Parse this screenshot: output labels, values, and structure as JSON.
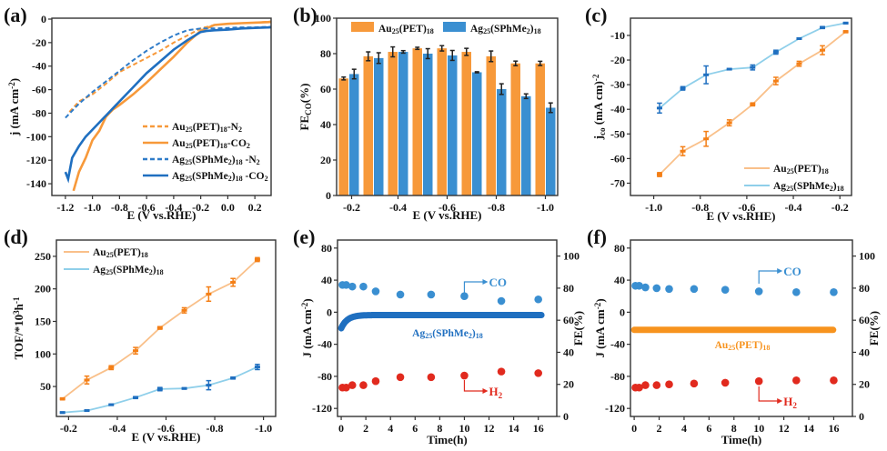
{
  "chart_data": [
    {
      "panel": "(a)",
      "type": "line",
      "xlabel": "E (V vs.RHE)",
      "ylabel": "j (mA cm^-2)",
      "xlim": [
        -1.3,
        0.32
      ],
      "ylim": [
        -150,
        0
      ],
      "xticks": [
        -1.2,
        -1.0,
        -0.8,
        -0.6,
        -0.4,
        -0.2,
        0.0,
        0.2
      ],
      "xtick_labels": [
        "-1.2",
        "-1.0",
        "-0.8",
        "-0.6",
        "-0.4",
        "-0.2",
        "0.0",
        "0.2"
      ],
      "yticks": [
        0,
        -20,
        -40,
        -60,
        -80,
        -100,
        -120,
        -140
      ],
      "ytick_labels": [
        "0",
        "-20",
        "-40",
        "-60",
        "-80",
        "-100",
        "-120",
        "-140"
      ],
      "legend_position": "bottom-right",
      "series": [
        {
          "name": "Au25(PET)18-N2",
          "label_main": "Au",
          "sub1": "25",
          "mid": "(PET)",
          "sub2": "18",
          "suffix": "-N",
          "sub3": "2",
          "color": "#F7993A",
          "dash": true,
          "x": [
            -1.17,
            -1.1,
            -1.0,
            -0.9,
            -0.8,
            -0.7,
            -0.6,
            -0.5,
            -0.4,
            -0.3,
            -0.2,
            -0.1,
            0.0,
            0.1,
            0.2,
            0.32
          ],
          "y": [
            -79,
            -70,
            -64,
            -55,
            -45,
            -39,
            -33,
            -27,
            -20,
            -14,
            -8,
            -5,
            -4,
            -3.5,
            -3,
            -2
          ]
        },
        {
          "name": "Au25(PET)18-CO2",
          "label_main": "Au",
          "sub1": "25",
          "mid": "(PET)",
          "sub2": "18",
          "suffix": "-CO",
          "sub3": "2",
          "color": "#F7993A",
          "dash": false,
          "x": [
            -1.14,
            -1.1,
            -1.05,
            -1.0,
            -0.95,
            -0.9,
            -0.85,
            -0.8,
            -0.7,
            -0.6,
            -0.5,
            -0.4,
            -0.3,
            -0.2,
            -0.1,
            0.0,
            0.1,
            0.2,
            0.32
          ],
          "y": [
            -146,
            -130,
            -118,
            -103,
            -95,
            -83,
            -77,
            -73,
            -64,
            -54,
            -43,
            -32,
            -20,
            -10,
            -5,
            -4,
            -3.5,
            -3,
            -2.5
          ]
        },
        {
          "name": "Ag25(SPhMe2)18-N2",
          "label_main": "Ag",
          "sub1": "25",
          "mid": "(SPhMe",
          "midsub": "2",
          "mid2": ")",
          "sub2": "18",
          "suffix": " -N",
          "sub3": "2",
          "color": "#2F7CC9",
          "dash": true,
          "x": [
            -1.2,
            -1.1,
            -1.0,
            -0.9,
            -0.8,
            -0.7,
            -0.6,
            -0.5,
            -0.4,
            -0.3,
            -0.2,
            -0.1,
            0.0,
            0.1,
            0.2,
            0.32
          ],
          "y": [
            -84,
            -72,
            -62,
            -53,
            -44,
            -35,
            -27,
            -20,
            -14,
            -9.5,
            -8,
            -8,
            -7.5,
            -7,
            -7,
            -6.5
          ]
        },
        {
          "name": "Ag25(SPhMe2)18-CO2",
          "label_main": "Ag",
          "sub1": "25",
          "mid": "(SPhMe",
          "midsub": "2",
          "mid2": ")",
          "sub2": "18",
          "suffix": " -CO",
          "sub3": "2",
          "color": "#1F6FC0",
          "dash": false,
          "x": [
            -1.2,
            -1.18,
            -1.15,
            -1.1,
            -1.05,
            -1.0,
            -0.9,
            -0.8,
            -0.7,
            -0.6,
            -0.5,
            -0.4,
            -0.3,
            -0.2,
            -0.15,
            -0.1,
            0.0,
            0.1,
            0.2,
            0.32
          ],
          "y": [
            -130,
            -136,
            -118,
            -108,
            -100,
            -94,
            -82,
            -70,
            -58,
            -46,
            -36,
            -26,
            -18,
            -11,
            -10,
            -9.5,
            -9,
            -8,
            -7.5,
            -7
          ]
        }
      ]
    },
    {
      "panel": "(b)",
      "type": "bar",
      "xlabel": "E (V vs.RHE)",
      "ylabel": "FE_CO(%)",
      "ylabel_main": "FE",
      "ylabel_sub": "CO",
      "ylabel_tail": "(%)",
      "ylim": [
        0,
        100
      ],
      "yticks": [
        0,
        20,
        40,
        60,
        80,
        100
      ],
      "ytick_labels": [
        "0",
        "20",
        "40",
        "60",
        "80",
        "100"
      ],
      "categories": [
        -0.2,
        -0.3,
        -0.4,
        -0.5,
        -0.6,
        -0.7,
        -0.8,
        -0.9,
        -1.0
      ],
      "xtick_labels": [
        "-0.2",
        "-0.4",
        "-0.6",
        "-0.8",
        "-1.0"
      ],
      "xtick_categories": [
        0,
        2,
        4,
        6,
        8
      ],
      "legend_position": "top",
      "series": [
        {
          "name": "Au25(PET)18",
          "color": "#F7993A",
          "values": [
            66,
            78.5,
            81,
            83,
            83,
            81,
            78.5,
            74.5,
            74.5
          ],
          "errors": [
            0.8,
            2.5,
            2.8,
            0.6,
            1.5,
            2.0,
            3.0,
            1.3,
            1.2
          ]
        },
        {
          "name": "Ag25(SPhMe2)18",
          "color": "#3A8FD1",
          "values": [
            68.5,
            77.5,
            81,
            80,
            79,
            69.5,
            60,
            56,
            49.5
          ],
          "errors": [
            2.7,
            3.0,
            0.7,
            2.8,
            2.8,
            0.3,
            3.0,
            1.3,
            2.7
          ]
        }
      ]
    },
    {
      "panel": "(c)",
      "type": "line",
      "xlabel": "E (V vs.RHE)",
      "ylabel": "jco (mA cm)^-2",
      "xlim": [
        -1.1,
        -0.15
      ],
      "ylim": [
        -75,
        -3
      ],
      "xticks": [
        -1.0,
        -0.8,
        -0.6,
        -0.4,
        -0.2
      ],
      "xtick_labels": [
        "-1.0",
        "-0.8",
        "-0.6",
        "-0.4",
        "-0.2"
      ],
      "yticks": [
        -10,
        -20,
        -30,
        -40,
        -50,
        -60,
        -70
      ],
      "ytick_labels": [
        "-10",
        "-20",
        "-30",
        "-40",
        "-50",
        "-60",
        "-70"
      ],
      "legend_position": "bottom-right",
      "series": [
        {
          "name": "Au25(PET)18",
          "line_color": "#F9C08A",
          "marker_color": "#F47F16",
          "x": [
            -0.975,
            -0.875,
            -0.775,
            -0.675,
            -0.575,
            -0.475,
            -0.375,
            -0.275,
            -0.175
          ],
          "y": [
            -66.5,
            -57,
            -52,
            -45.5,
            -38,
            -28.5,
            -21.5,
            -16,
            -8.5
          ],
          "errors": [
            0.8,
            1.8,
            3.0,
            1.2,
            0.6,
            1.5,
            1.0,
            1.8,
            0.4
          ]
        },
        {
          "name": "Ag25(SPhMe2)18",
          "line_color": "#8FCFEA",
          "marker_color": "#1F6FC0",
          "x": [
            -0.975,
            -0.875,
            -0.775,
            -0.675,
            -0.575,
            -0.475,
            -0.375,
            -0.275,
            -0.175
          ],
          "y": [
            -39.5,
            -31.5,
            -26,
            -23.7,
            -23,
            -16.8,
            -11.3,
            -6.8,
            -5
          ],
          "errors": [
            2.0,
            0.7,
            3.6,
            0.2,
            1.0,
            0.8,
            0.2,
            0.4,
            0.3
          ]
        }
      ]
    },
    {
      "panel": "(d)",
      "type": "line",
      "xlabel": "E (V vs.RHE)",
      "ylabel": "TOF/*10^3h^-1",
      "xlim": [
        -0.15,
        -1.05
      ],
      "ylim": [
        4,
        275
      ],
      "xticks": [
        -0.2,
        -0.4,
        -0.6,
        -0.8,
        -1.0
      ],
      "xtick_labels": [
        "-0.2",
        "-0.4",
        "-0.6",
        "-0.8",
        "-1.0"
      ],
      "yticks": [
        50,
        100,
        150,
        200,
        250
      ],
      "ytick_labels": [
        "50",
        "100",
        "150",
        "200",
        "250"
      ],
      "legend_position": "top-left",
      "series": [
        {
          "name": "Au25(PET)18",
          "line_color": "#F9C08A",
          "marker_color": "#F47F16",
          "x": [
            -0.175,
            -0.275,
            -0.375,
            -0.475,
            -0.575,
            -0.675,
            -0.775,
            -0.875,
            -0.975
          ],
          "y": [
            31,
            60,
            79,
            105,
            140,
            167,
            192,
            210,
            245
          ],
          "errors": [
            1.5,
            6,
            3,
            5,
            2,
            4,
            11,
            6,
            3
          ]
        },
        {
          "name": "Ag25(SPhMe2)18",
          "line_color": "#8FCFEA",
          "marker_color": "#1F6FC0",
          "x": [
            -0.175,
            -0.275,
            -0.375,
            -0.475,
            -0.575,
            -0.675,
            -0.775,
            -0.875,
            -0.975
          ],
          "y": [
            10,
            13,
            22,
            33,
            46,
            47,
            52,
            63,
            80
          ],
          "errors": [
            1,
            1,
            1,
            1.5,
            2.5,
            1,
            7,
            1.5,
            4
          ]
        }
      ]
    },
    {
      "panel": "(e)",
      "type": "scatter",
      "xlabel": "Time(h)",
      "ylabel": "J (mA cm^-2)",
      "y2label": "FE(%)",
      "xlim": [
        -0.3,
        17.5
      ],
      "ylim": [
        -130,
        90
      ],
      "y2lim": [
        0,
        110
      ],
      "xticks": [
        0,
        2,
        4,
        6,
        8,
        10,
        12,
        14,
        16
      ],
      "xtick_labels": [
        "0",
        "2",
        "4",
        "6",
        "8",
        "10",
        "12",
        "14",
        "16"
      ],
      "yticks": [
        80,
        40,
        0,
        -40,
        -80,
        -120
      ],
      "ytick_labels": [
        "80",
        "40",
        "0",
        "-40",
        "-80",
        "-120"
      ],
      "y2ticks": [
        0,
        20,
        40,
        60,
        80,
        100
      ],
      "y2tick_labels": [
        "0",
        "20",
        "40",
        "60",
        "80",
        "100"
      ],
      "current_label": "Ag25(SPhMe2)18",
      "current_color": "#1F6FC0",
      "current_start": -20,
      "current_steady": -3.5,
      "current_end_time": 16.3,
      "annotations": {
        "co": "CO",
        "h2": "H2"
      },
      "series": [
        {
          "name": "CO",
          "color": "#3A8FD1",
          "t": [
            0.1,
            0.4,
            0.9,
            1.8,
            2.8,
            4.8,
            7.3,
            10,
            13,
            16
          ],
          "fe": [
            82,
            82,
            81,
            81,
            78,
            76,
            76,
            75,
            72,
            73
          ]
        },
        {
          "name": "H2",
          "color": "#E12A1E",
          "t": [
            0.1,
            0.4,
            0.9,
            1.8,
            2.8,
            4.8,
            7.3,
            10,
            13,
            16
          ],
          "fe": [
            18,
            18,
            19.5,
            19.5,
            22,
            24.5,
            24.5,
            25.5,
            28,
            27
          ]
        }
      ]
    },
    {
      "panel": "(f)",
      "type": "scatter",
      "xlabel": "Time(h)",
      "ylabel": "J (mA cm^-2)",
      "y2label": "FE(%)",
      "xlim": [
        -0.3,
        17.5
      ],
      "ylim": [
        -130,
        90
      ],
      "y2lim": [
        0,
        110
      ],
      "xticks": [
        0,
        2,
        4,
        6,
        8,
        10,
        12,
        14,
        16
      ],
      "xtick_labels": [
        "0",
        "2",
        "4",
        "6",
        "8",
        "10",
        "12",
        "14",
        "16"
      ],
      "yticks": [
        80,
        40,
        0,
        -40,
        -80,
        -120
      ],
      "ytick_labels": [
        "80",
        "40",
        "0",
        "-40",
        "-80",
        "-120"
      ],
      "y2ticks": [
        0,
        20,
        40,
        60,
        80,
        100
      ],
      "y2tick_labels": [
        "0",
        "20",
        "40",
        "60",
        "80",
        "100"
      ],
      "current_label": "Au25(PET)18",
      "current_color": "#F7931E",
      "current_start": -22,
      "current_steady": -22,
      "current_end_time": 16,
      "annotations": {
        "co": "CO",
        "h2": "H2"
      },
      "series": [
        {
          "name": "CO",
          "color": "#3A8FD1",
          "t": [
            0.1,
            0.4,
            0.9,
            1.8,
            2.8,
            4.8,
            7.3,
            10,
            13,
            16
          ],
          "fe": [
            81.5,
            81.5,
            80.5,
            80,
            79.5,
            79.5,
            79,
            78,
            77.5,
            77.5
          ]
        },
        {
          "name": "H2",
          "color": "#E12A1E",
          "t": [
            0.1,
            0.4,
            0.9,
            1.8,
            2.8,
            4.8,
            7.3,
            10,
            13,
            16
          ],
          "fe": [
            18,
            18,
            19.5,
            19.5,
            20,
            20.5,
            21,
            22,
            22.5,
            22.5
          ]
        }
      ]
    }
  ],
  "panel_labels": [
    "(a)",
    "(b)",
    "(c)",
    "(d)",
    "(e)",
    "(f)"
  ]
}
